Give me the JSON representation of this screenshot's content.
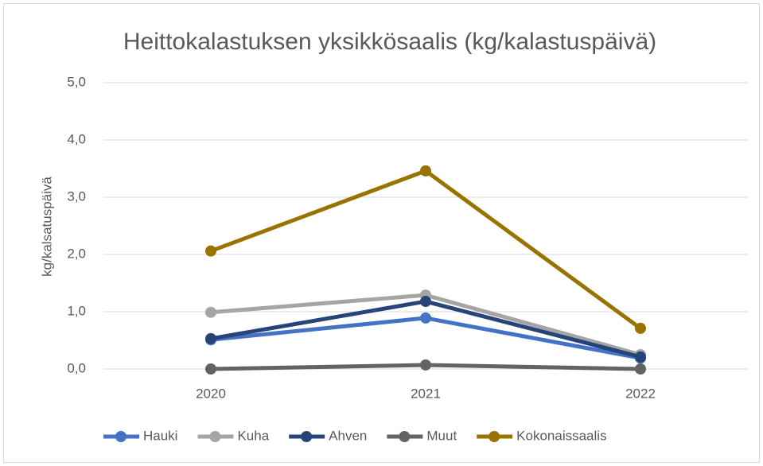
{
  "chart_data": {
    "type": "line",
    "title": "Heittokalastuksen yksikkösaalis (kg/kalastuspäivä)",
    "y_label": "kg/kalsatuspäivä",
    "categories": [
      "2020",
      "2021",
      "2022"
    ],
    "series": [
      {
        "name": "Hauki",
        "color": "#4472c4",
        "values": [
          0.51,
          0.89,
          0.19
        ]
      },
      {
        "name": "Kuha",
        "color": "#a5a5a5",
        "values": [
          0.99,
          1.29,
          0.25
        ]
      },
      {
        "name": "Ahven",
        "color": "#264478",
        "values": [
          0.53,
          1.18,
          0.21
        ]
      },
      {
        "name": "Muut",
        "color": "#636363",
        "values": [
          0,
          0.07,
          0
        ]
      },
      {
        "name": "Kokonaissaalis",
        "color": "#997300",
        "values": [
          2.06,
          3.46,
          0.71
        ]
      }
    ],
    "ylim": [
      0,
      5
    ],
    "yticks": [
      {
        "value": 0,
        "label": "0,0"
      },
      {
        "value": 1,
        "label": "1,0"
      },
      {
        "value": 2,
        "label": "2,0"
      },
      {
        "value": 3,
        "label": "3,0"
      },
      {
        "value": 4,
        "label": "4,0"
      },
      {
        "value": 5,
        "label": "5,0"
      }
    ],
    "grid": true,
    "legend": "bottom"
  }
}
